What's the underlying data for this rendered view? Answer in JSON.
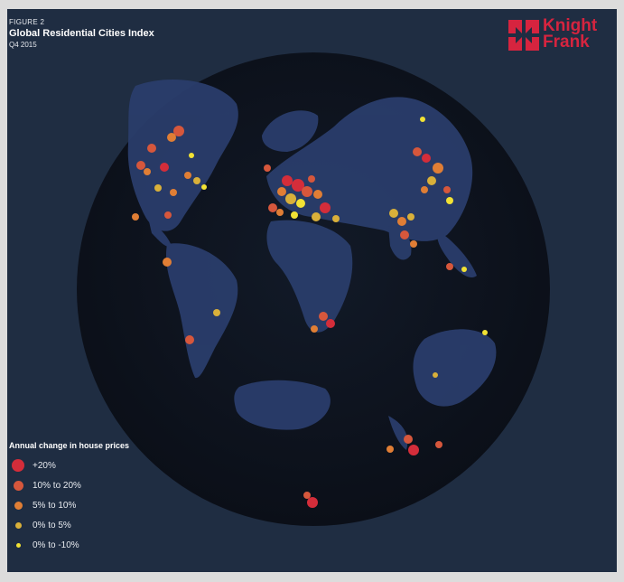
{
  "figure": {
    "label": "FIGURE 2",
    "title": "Global Residential Cities Index",
    "subtitle": "Q4 2015"
  },
  "logo": {
    "line1": "Knight",
    "line2": "Frank",
    "color": "#d6243f"
  },
  "legend": {
    "title": "Annual change in house prices",
    "items": [
      {
        "label": "+20%",
        "color": "#d42d3a"
      },
      {
        "label": "10% to 20%",
        "color": "#d6573c"
      },
      {
        "label": "5% to 10%",
        "color": "#e07e35"
      },
      {
        "label": "0% to 5%",
        "color": "#d9b03a"
      },
      {
        "label": "0% to -10%",
        "color": "#f2e234"
      }
    ]
  },
  "colors": {
    "background": "#1f2d42",
    "globe": "#0f1420",
    "land": "#2a3d6b"
  }
}
